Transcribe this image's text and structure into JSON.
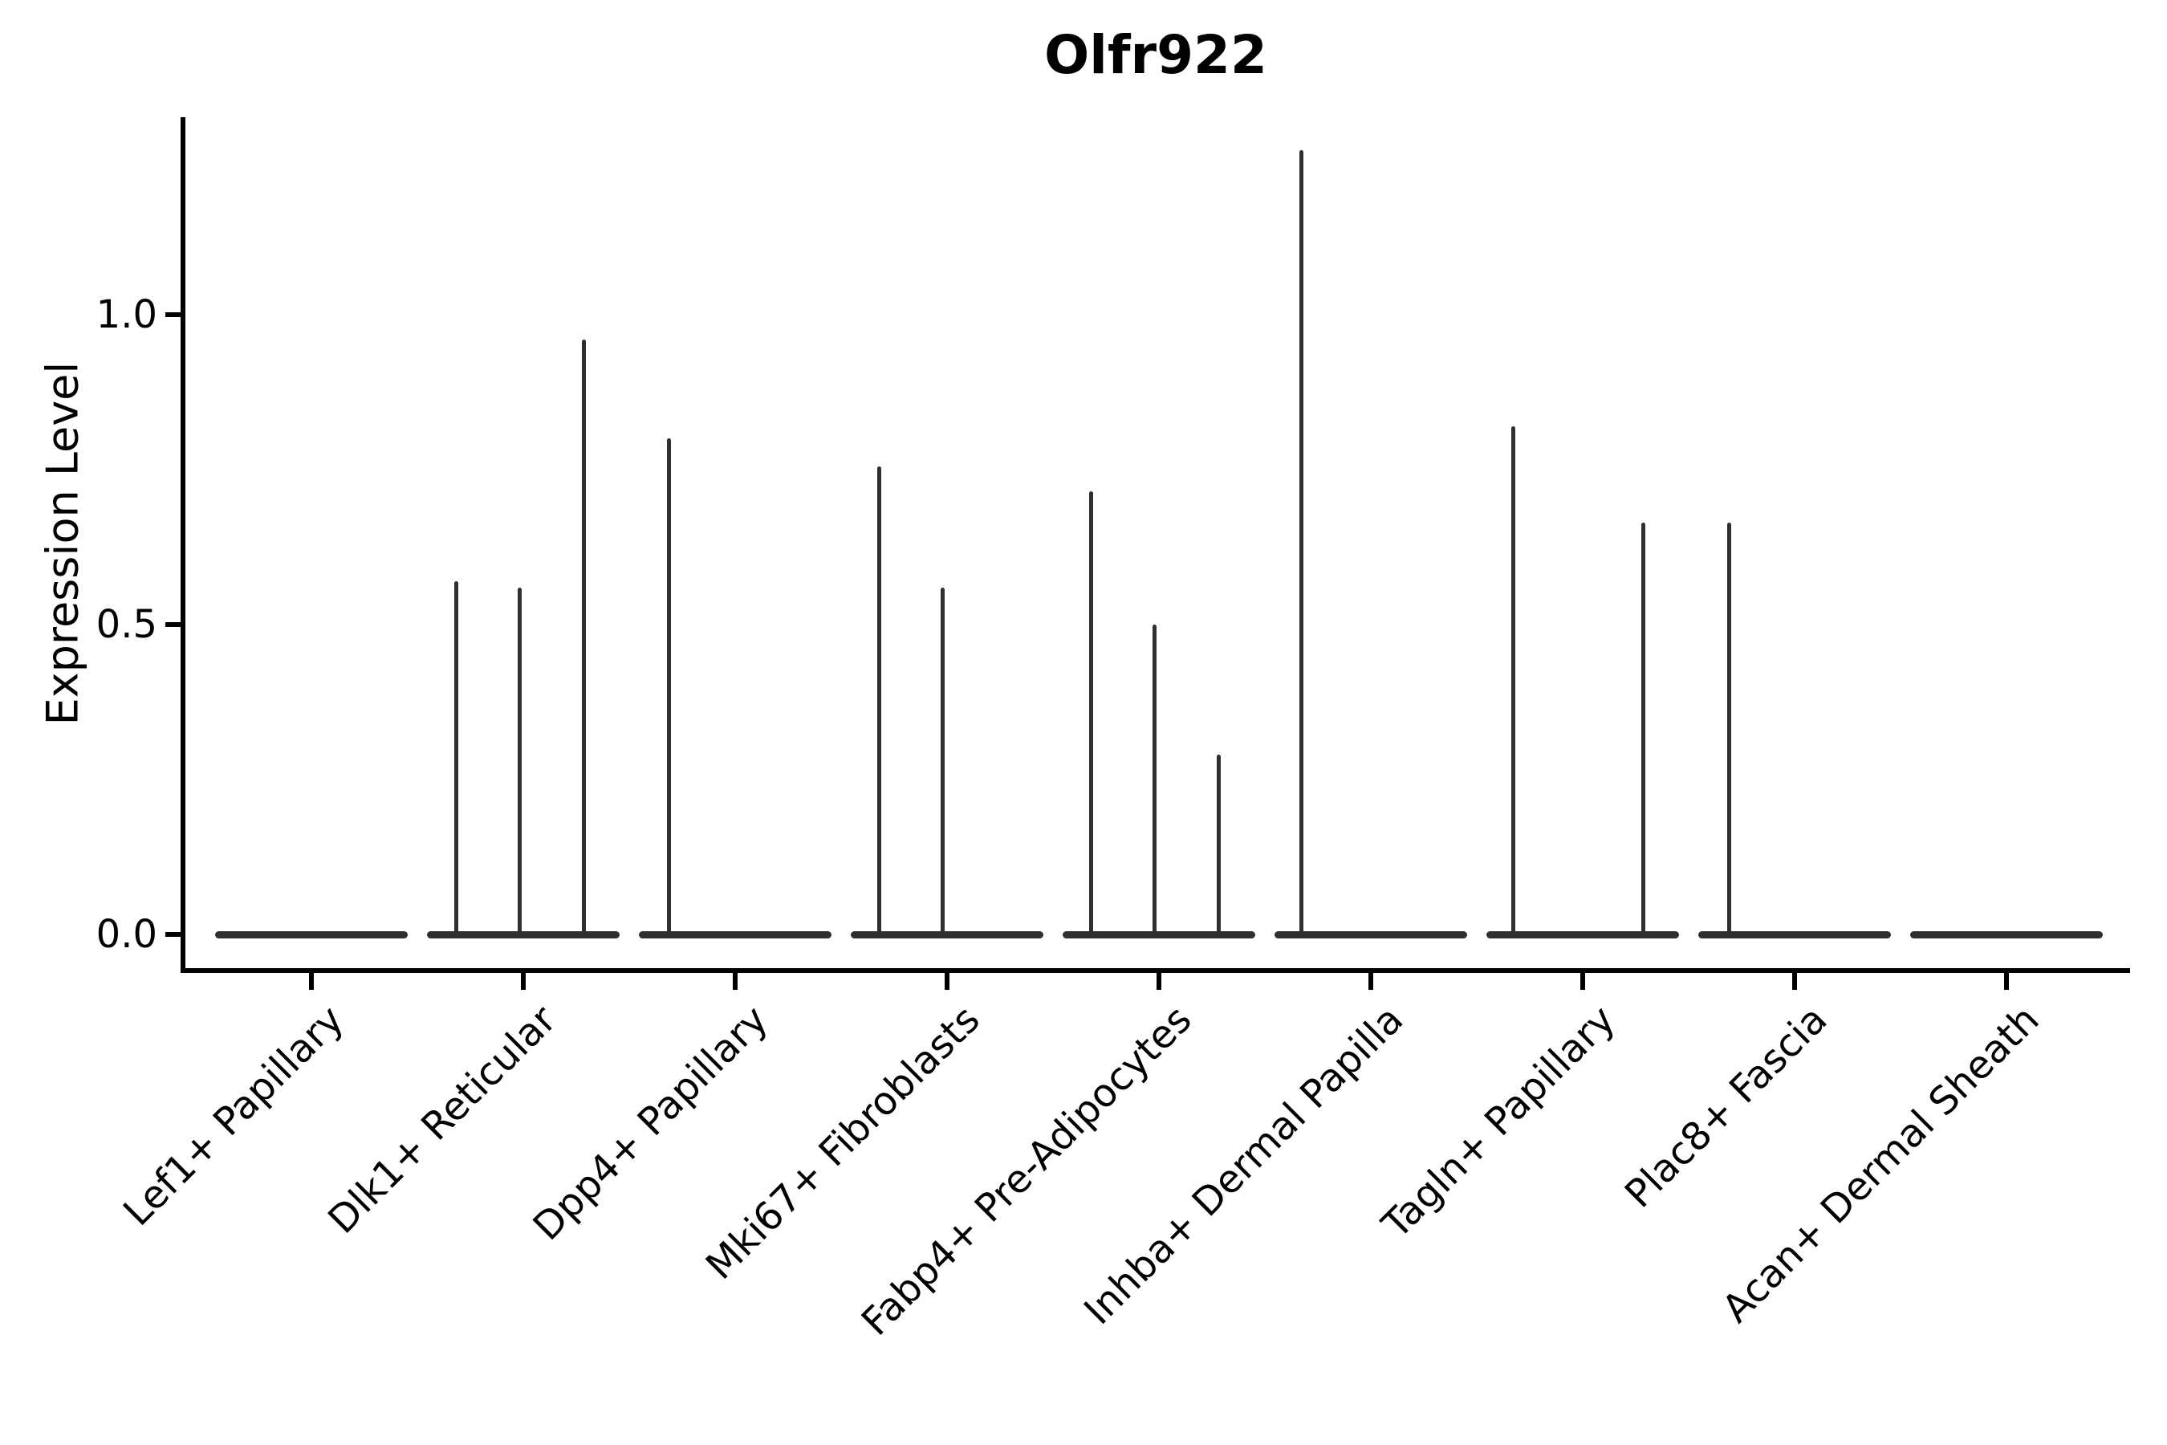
{
  "figure": {
    "background": "#ffffff"
  },
  "chart_data": {
    "type": "violin",
    "title": "Olfr922",
    "ylabel": "Expression Level",
    "xlabel": "",
    "grid": false,
    "legend": "none",
    "ylim": [
      -0.06,
      1.32
    ],
    "yticks": [
      {
        "value": 0.0,
        "label": "0.0"
      },
      {
        "value": 0.5,
        "label": "0.5"
      },
      {
        "value": 1.0,
        "label": "1.0"
      }
    ],
    "axis_color": "#000000",
    "ink_color": "#2f2f2f",
    "description": "Flat (zero-width) violins along the baseline with thin vertical density spikes for expressing cells",
    "categories": [
      {
        "label": "Lef1+ Papillary",
        "spikes": []
      },
      {
        "label": "Dlk1+ Reticular",
        "spikes": [
          {
            "dx": -84,
            "value": 0.57
          },
          {
            "dx": -5,
            "value": 0.56
          },
          {
            "dx": 75,
            "value": 0.96
          }
        ]
      },
      {
        "label": "Dpp4+ Papillary",
        "spikes": [
          {
            "dx": -83,
            "value": 0.8
          }
        ]
      },
      {
        "label": "Mki67+ Fibroblasts",
        "spikes": [
          {
            "dx": -85,
            "value": 0.755
          },
          {
            "dx": -6,
            "value": 0.56
          }
        ]
      },
      {
        "label": "Fabp4+ Pre-Adipocytes",
        "spikes": [
          {
            "dx": -85,
            "value": 0.715
          },
          {
            "dx": -6,
            "value": 0.5
          },
          {
            "dx": 74,
            "value": 0.29
          }
        ]
      },
      {
        "label": "Inhba+ Dermal Papilla",
        "spikes": [
          {
            "dx": -87,
            "value": 1.265
          }
        ]
      },
      {
        "label": "Tagln+ Papillary",
        "spikes": [
          {
            "dx": -87,
            "value": 0.82
          },
          {
            "dx": 75,
            "value": 0.665
          }
        ]
      },
      {
        "label": "Plac8+ Fascia",
        "spikes": [
          {
            "dx": -82,
            "value": 0.665
          }
        ]
      },
      {
        "label": "Acan+ Dermal Sheath",
        "spikes": []
      }
    ]
  }
}
